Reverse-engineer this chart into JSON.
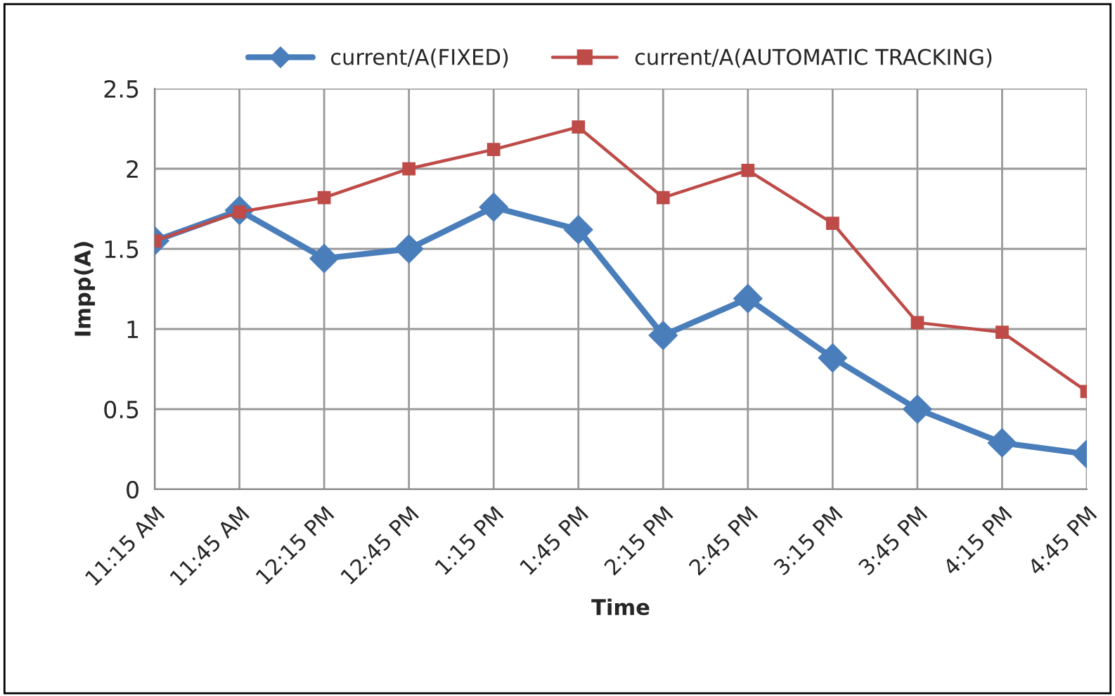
{
  "chart_data": {
    "type": "line",
    "xlabel": "Time",
    "ylabel": "Impp(A)",
    "categories": [
      "11:15 AM",
      "11:45 AM",
      "12:15 PM",
      "12:45 PM",
      "1:15 PM",
      "1:45 PM",
      "2:15 PM",
      "2:45 PM",
      "3:15 PM",
      "3:45 PM",
      "4:15 PM",
      "4:45 PM"
    ],
    "series": [
      {
        "name": "current/A(FIXED)",
        "color": "#4a7ebb",
        "marker": "diamond",
        "values": [
          1.55,
          1.74,
          1.44,
          1.5,
          1.76,
          1.62,
          0.96,
          1.19,
          0.82,
          0.5,
          0.29,
          0.22
        ]
      },
      {
        "name": "current/A(AUTOMATIC TRACKING)",
        "color": "#be4b48",
        "marker": "square",
        "values": [
          1.55,
          1.73,
          1.82,
          2.0,
          2.12,
          2.26,
          1.82,
          1.99,
          1.66,
          1.04,
          0.98,
          0.61
        ]
      }
    ],
    "ylim": [
      0,
      2.5
    ],
    "yticks": [
      0,
      0.5,
      1,
      1.5,
      2,
      2.5
    ],
    "grid": true,
    "legend": "top",
    "line_style": "solid"
  }
}
